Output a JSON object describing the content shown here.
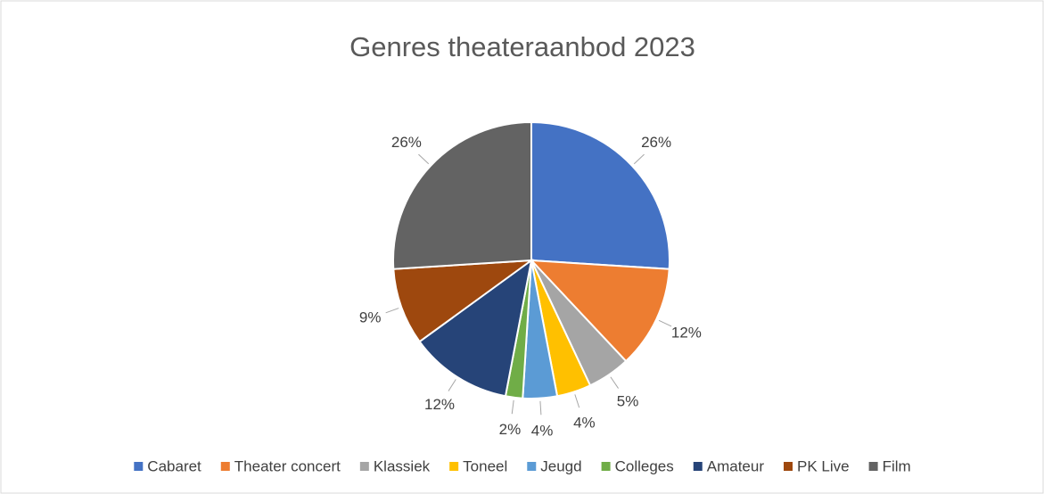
{
  "chart_data": {
    "type": "pie",
    "title": "Genres theateraanbod 2023",
    "categories": [
      "Cabaret",
      "Theater concert",
      "Klassiek",
      "Toneel",
      "Jeugd",
      "Colleges",
      "Amateur",
      "PK Live",
      "Film"
    ],
    "values": [
      26,
      12,
      5,
      4,
      4,
      2,
      12,
      9,
      26
    ],
    "value_labels": [
      "26%",
      "12%",
      "5%",
      "4%",
      "4%",
      "2%",
      "12%",
      "9%",
      "26%"
    ],
    "colors": [
      "#4472c4",
      "#ed7d31",
      "#a5a5a5",
      "#ffc000",
      "#5b9bd5",
      "#70ad47",
      "#264478",
      "#9e480e",
      "#636363"
    ],
    "legend": "bottom"
  }
}
